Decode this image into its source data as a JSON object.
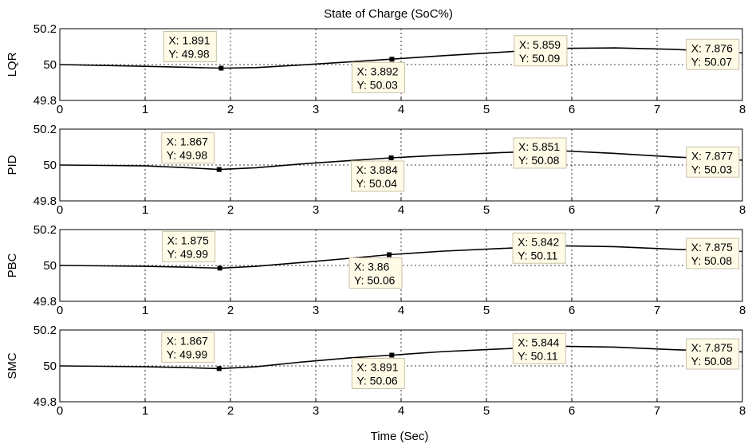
{
  "chart_data": {
    "type": "line",
    "title": "State of Charge (SoC%)",
    "xlabel": "Time (Sec)",
    "xlim": [
      0,
      8
    ],
    "x_ticks": [
      "0",
      "1",
      "2",
      "3",
      "4",
      "5",
      "6",
      "7",
      "8"
    ],
    "ylim": [
      49.8,
      50.2
    ],
    "y_ticks": [
      "49.8",
      "50",
      "50.2"
    ],
    "grid": true,
    "line_color": "#000000",
    "datatip_color": "#fffbe6",
    "panels": [
      {
        "ylabel": "LQR",
        "x": [
          0,
          0.5,
          1,
          1.5,
          1.891,
          2.3,
          2.8,
          3.4,
          3.892,
          4.5,
          5.2,
          5.859,
          6.5,
          7.2,
          7.876,
          8.0
        ],
        "y": [
          50.0,
          49.995,
          49.99,
          49.985,
          49.98,
          49.983,
          49.997,
          50.015,
          50.03,
          50.05,
          50.07,
          50.09,
          50.093,
          50.085,
          50.07,
          50.065
        ],
        "datatips": [
          {
            "x": 1.891,
            "y": 49.98,
            "x_text": "X: 1.891",
            "y_text": "Y: 49.98"
          },
          {
            "x": 3.892,
            "y": 50.03,
            "x_text": "X: 3.892",
            "y_text": "Y: 50.03"
          },
          {
            "x": 5.859,
            "y": 50.09,
            "x_text": "X: 5.859",
            "y_text": "Y: 50.09"
          },
          {
            "x": 7.876,
            "y": 50.07,
            "x_text": "X: 7.876",
            "y_text": "Y: 50.07"
          }
        ]
      },
      {
        "ylabel": "PID",
        "x": [
          0,
          0.5,
          1,
          1.5,
          1.867,
          2.3,
          2.8,
          3.4,
          3.884,
          4.5,
          5.2,
          5.851,
          6.5,
          7.2,
          7.877,
          8.0
        ],
        "y": [
          50.0,
          49.998,
          49.995,
          49.985,
          49.975,
          49.985,
          50.005,
          50.025,
          50.04,
          50.055,
          50.07,
          50.08,
          50.065,
          50.045,
          50.03,
          50.027
        ],
        "datatips": [
          {
            "x": 1.867,
            "y": 49.975,
            "x_text": "X: 1.867",
            "y_text": "Y: 49.98"
          },
          {
            "x": 3.884,
            "y": 50.04,
            "x_text": "X: 3.884",
            "y_text": "Y: 50.04"
          },
          {
            "x": 5.851,
            "y": 50.08,
            "x_text": "X: 5.851",
            "y_text": "Y: 50.08"
          },
          {
            "x": 7.877,
            "y": 50.03,
            "x_text": "X: 7.877",
            "y_text": "Y: 50.03"
          }
        ]
      },
      {
        "ylabel": "PBC",
        "x": [
          0,
          0.5,
          1,
          1.5,
          1.875,
          2.3,
          2.8,
          3.4,
          3.86,
          4.5,
          5.2,
          5.842,
          6.5,
          7.2,
          7.875,
          8.0
        ],
        "y": [
          50.0,
          49.998,
          49.995,
          49.99,
          49.985,
          49.995,
          50.015,
          50.04,
          50.06,
          50.08,
          50.095,
          50.11,
          50.105,
          50.09,
          50.08,
          50.078
        ],
        "datatips": [
          {
            "x": 1.875,
            "y": 49.985,
            "x_text": "X: 1.875",
            "y_text": "Y: 49.99"
          },
          {
            "x": 3.86,
            "y": 50.06,
            "x_text": "X: 3.86",
            "y_text": "Y: 50.06"
          },
          {
            "x": 5.842,
            "y": 50.11,
            "x_text": "X: 5.842",
            "y_text": "Y: 50.11"
          },
          {
            "x": 7.875,
            "y": 50.08,
            "x_text": "X: 7.875",
            "y_text": "Y: 50.08"
          }
        ]
      },
      {
        "ylabel": "SMC",
        "x": [
          0,
          0.5,
          1,
          1.5,
          1.867,
          2.3,
          2.8,
          3.4,
          3.891,
          4.5,
          5.2,
          5.844,
          6.5,
          7.2,
          7.875,
          8.0
        ],
        "y": [
          50.0,
          49.998,
          49.995,
          49.99,
          49.985,
          49.995,
          50.02,
          50.045,
          50.06,
          50.08,
          50.095,
          50.11,
          50.105,
          50.09,
          50.08,
          50.078
        ],
        "datatips": [
          {
            "x": 1.867,
            "y": 49.985,
            "x_text": "X: 1.867",
            "y_text": "Y: 49.99"
          },
          {
            "x": 3.891,
            "y": 50.06,
            "x_text": "X: 3.891",
            "y_text": "Y: 50.06"
          },
          {
            "x": 5.844,
            "y": 50.11,
            "x_text": "X: 5.844",
            "y_text": "Y: 50.11"
          },
          {
            "x": 7.875,
            "y": 50.08,
            "x_text": "X: 7.875",
            "y_text": "Y: 50.08"
          }
        ]
      }
    ]
  }
}
